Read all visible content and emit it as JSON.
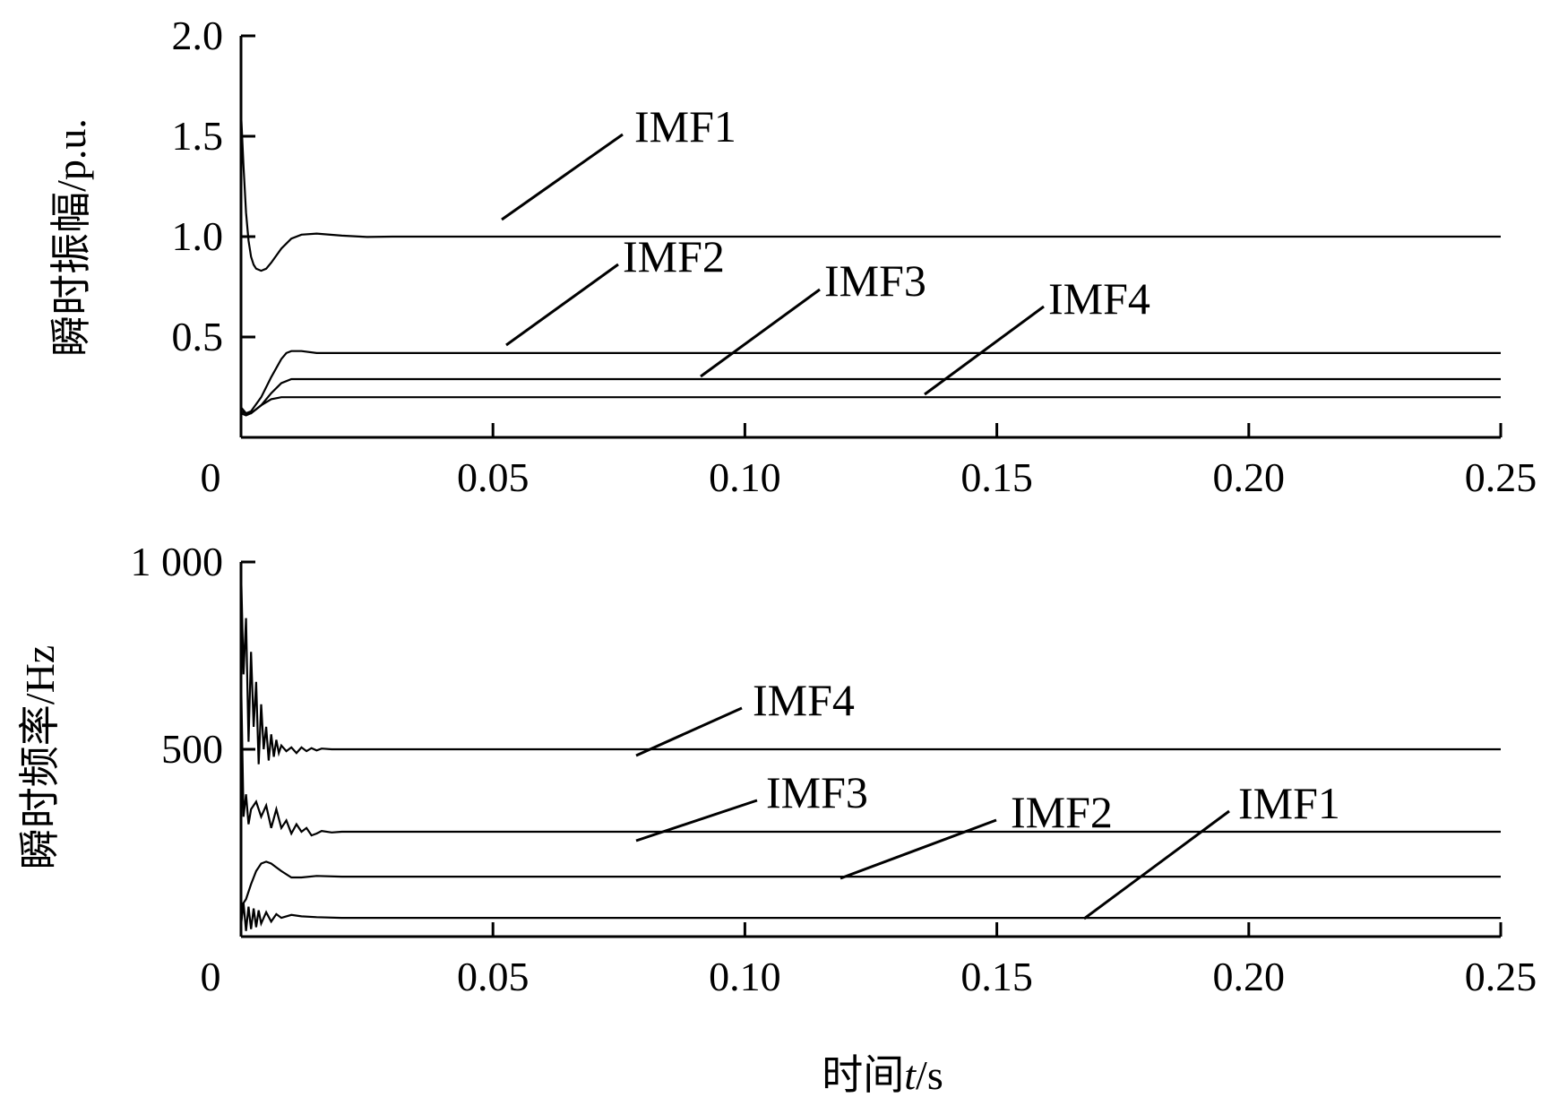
{
  "chart_data": [
    {
      "type": "line",
      "ylabel": "瞬时振幅/p.u.",
      "xlim": [
        0,
        0.25
      ],
      "ylim": [
        0,
        2.0
      ],
      "xticks": [
        0,
        0.05,
        0.1,
        0.15,
        0.2,
        0.25
      ],
      "xtick_labels": [
        "0",
        "0.05",
        "0.10",
        "0.15",
        "0.20",
        "0.25"
      ],
      "yticks": [
        0.5,
        1.0,
        1.5,
        2.0
      ],
      "ytick_labels": [
        "0.5",
        "1.0",
        "1.5",
        "2.0"
      ],
      "grid": false,
      "series": [
        {
          "name": "IMF1",
          "x": [
            0,
            0.0005,
            0.001,
            0.0015,
            0.002,
            0.0025,
            0.003,
            0.004,
            0.005,
            0.006,
            0.008,
            0.01,
            0.012,
            0.015,
            0.02,
            0.025,
            0.03,
            0.05,
            0.1,
            0.15,
            0.2,
            0.25
          ],
          "y": [
            1.62,
            1.35,
            1.12,
            0.98,
            0.9,
            0.86,
            0.84,
            0.83,
            0.84,
            0.87,
            0.94,
            0.99,
            1.01,
            1.015,
            1.005,
            0.998,
            1.0,
            1.0,
            1.0,
            1.0,
            1.0,
            1.0
          ]
        },
        {
          "name": "IMF2",
          "x": [
            0,
            0.001,
            0.002,
            0.004,
            0.006,
            0.008,
            0.009,
            0.01,
            0.012,
            0.015,
            0.02,
            0.03,
            0.05,
            0.1,
            0.15,
            0.2,
            0.25
          ],
          "y": [
            0.13,
            0.12,
            0.13,
            0.2,
            0.3,
            0.39,
            0.42,
            0.43,
            0.43,
            0.42,
            0.42,
            0.42,
            0.42,
            0.42,
            0.42,
            0.42,
            0.42
          ]
        },
        {
          "name": "IMF3",
          "x": [
            0,
            0.001,
            0.002,
            0.004,
            0.006,
            0.008,
            0.01,
            0.012,
            0.015,
            0.02,
            0.05,
            0.1,
            0.15,
            0.2,
            0.25
          ],
          "y": [
            0.15,
            0.12,
            0.12,
            0.16,
            0.22,
            0.27,
            0.29,
            0.29,
            0.29,
            0.29,
            0.29,
            0.29,
            0.29,
            0.29,
            0.29
          ]
        },
        {
          "name": "IMF4",
          "x": [
            0,
            0.001,
            0.002,
            0.003,
            0.004,
            0.006,
            0.008,
            0.01,
            0.015,
            0.02,
            0.05,
            0.1,
            0.15,
            0.2,
            0.25
          ],
          "y": [
            0.12,
            0.11,
            0.12,
            0.14,
            0.16,
            0.19,
            0.2,
            0.2,
            0.2,
            0.2,
            0.2,
            0.2,
            0.2,
            0.2,
            0.2
          ]
        }
      ]
    },
    {
      "type": "line",
      "xlabel": "时间t/s",
      "xlabel_parts": [
        "时间",
        "t",
        "/s"
      ],
      "ylabel": "瞬时频率/Hz",
      "xlim": [
        0,
        0.25
      ],
      "ylim": [
        0,
        1000
      ],
      "xticks": [
        0,
        0.05,
        0.1,
        0.15,
        0.2,
        0.25
      ],
      "xtick_labels": [
        "0",
        "0.05",
        "0.10",
        "0.15",
        "0.20",
        "0.25"
      ],
      "yticks": [
        500,
        1000
      ],
      "ytick_labels": [
        "500",
        "1 000"
      ],
      "grid": false,
      "series": [
        {
          "name": "IMF4",
          "x": [
            0,
            0.0005,
            0.001,
            0.0015,
            0.002,
            0.0025,
            0.003,
            0.0035,
            0.004,
            0.0045,
            0.005,
            0.0055,
            0.006,
            0.0065,
            0.007,
            0.0075,
            0.008,
            0.009,
            0.01,
            0.011,
            0.012,
            0.013,
            0.014,
            0.015,
            0.016,
            0.018,
            0.02,
            0.03,
            0.05,
            0.1,
            0.15,
            0.2,
            0.25
          ],
          "y": [
            980,
            700,
            850,
            520,
            760,
            560,
            680,
            460,
            620,
            500,
            560,
            470,
            540,
            480,
            525,
            490,
            510,
            495,
            505,
            490,
            505,
            495,
            503,
            497,
            502,
            500,
            500,
            500,
            500,
            500,
            500,
            500,
            500
          ]
        },
        {
          "name": "IMF3",
          "x": [
            0,
            0.0005,
            0.001,
            0.0015,
            0.002,
            0.003,
            0.004,
            0.005,
            0.006,
            0.007,
            0.008,
            0.009,
            0.01,
            0.011,
            0.012,
            0.013,
            0.014,
            0.015,
            0.016,
            0.018,
            0.02,
            0.025,
            0.03,
            0.05,
            0.1,
            0.15,
            0.2,
            0.25
          ],
          "y": [
            700,
            320,
            380,
            300,
            340,
            360,
            320,
            350,
            290,
            340,
            290,
            310,
            275,
            300,
            280,
            290,
            270,
            275,
            282,
            278,
            280,
            280,
            280,
            280,
            280,
            280,
            280,
            280
          ]
        },
        {
          "name": "IMF2",
          "x": [
            0,
            0.001,
            0.002,
            0.003,
            0.004,
            0.005,
            0.006,
            0.007,
            0.008,
            0.01,
            0.012,
            0.015,
            0.02,
            0.05,
            0.1,
            0.15,
            0.2,
            0.25
          ],
          "y": [
            80,
            100,
            140,
            175,
            195,
            200,
            195,
            185,
            175,
            158,
            158,
            162,
            160,
            160,
            160,
            160,
            160,
            160
          ]
        },
        {
          "name": "IMF1",
          "x": [
            0,
            0.0005,
            0.001,
            0.0015,
            0.002,
            0.0025,
            0.003,
            0.0035,
            0.004,
            0.005,
            0.006,
            0.007,
            0.008,
            0.01,
            0.012,
            0.015,
            0.02,
            0.05,
            0.1,
            0.15,
            0.2,
            0.25
          ],
          "y": [
            30,
            90,
            15,
            80,
            20,
            75,
            25,
            70,
            35,
            65,
            40,
            60,
            50,
            58,
            54,
            52,
            50,
            50,
            50,
            50,
            50,
            50
          ]
        }
      ]
    }
  ]
}
